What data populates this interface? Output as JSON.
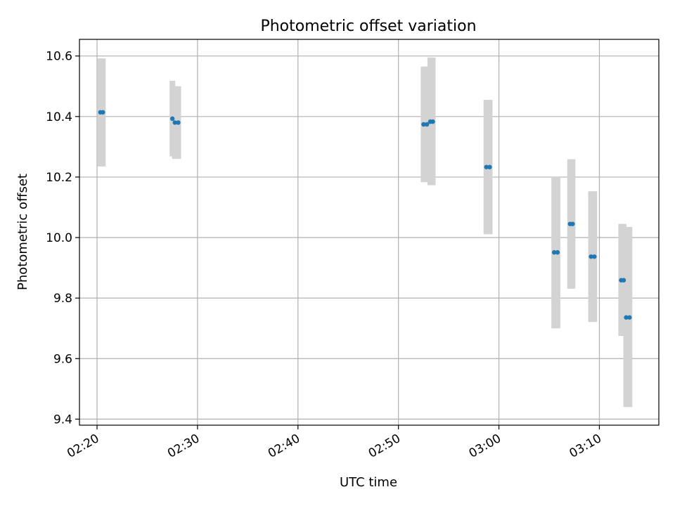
{
  "chart_data": {
    "type": "scatter",
    "title": "Photometric offset variation",
    "xlabel": "UTC time",
    "ylabel": "Photometric offset",
    "xlim": [
      "02:18:15",
      "03:15:55"
    ],
    "ylim": [
      9.38,
      10.655
    ],
    "grid": true,
    "x_ticks": [
      "02:20",
      "02:30",
      "02:40",
      "02:50",
      "03:00",
      "03:10"
    ],
    "y_ticks": [
      "9.4",
      "9.6",
      "9.8",
      "10.0",
      "10.2",
      "10.4",
      "10.6"
    ],
    "colors": {
      "marker": "#1f77b4",
      "errorbar": "#d3d3d3",
      "grid": "#b0b0b0"
    },
    "series": [
      {
        "points": [
          {
            "x": "02:20:20",
            "y": 10.414,
            "yerr_low": 10.235,
            "yerr_high": 10.592
          },
          {
            "x": "02:20:35",
            "y": 10.414,
            "yerr_low": 10.235,
            "yerr_high": 10.592
          },
          {
            "x": "02:27:30",
            "y": 10.393,
            "yerr_low": 10.268,
            "yerr_high": 10.518
          },
          {
            "x": "02:27:45",
            "y": 10.38,
            "yerr_low": 10.26,
            "yerr_high": 10.5
          },
          {
            "x": "02:28:05",
            "y": 10.38,
            "yerr_low": 10.26,
            "yerr_high": 10.5
          },
          {
            "x": "02:52:30",
            "y": 10.374,
            "yerr_low": 10.183,
            "yerr_high": 10.565
          },
          {
            "x": "02:52:50",
            "y": 10.374,
            "yerr_low": 10.183,
            "yerr_high": 10.565
          },
          {
            "x": "02:53:10",
            "y": 10.383,
            "yerr_low": 10.173,
            "yerr_high": 10.595
          },
          {
            "x": "02:53:25",
            "y": 10.383,
            "yerr_low": 10.173,
            "yerr_high": 10.595
          },
          {
            "x": "02:58:45",
            "y": 10.233,
            "yerr_low": 10.011,
            "yerr_high": 10.455
          },
          {
            "x": "02:59:05",
            "y": 10.233,
            "yerr_low": 10.011,
            "yerr_high": 10.455
          },
          {
            "x": "03:05:30",
            "y": 9.951,
            "yerr_low": 9.7,
            "yerr_high": 10.202
          },
          {
            "x": "03:05:50",
            "y": 9.951,
            "yerr_low": 9.7,
            "yerr_high": 10.202
          },
          {
            "x": "03:07:05",
            "y": 10.045,
            "yerr_low": 9.831,
            "yerr_high": 10.259
          },
          {
            "x": "03:07:20",
            "y": 10.045,
            "yerr_low": 9.831,
            "yerr_high": 10.259
          },
          {
            "x": "03:09:10",
            "y": 9.937,
            "yerr_low": 9.721,
            "yerr_high": 10.153
          },
          {
            "x": "03:09:30",
            "y": 9.937,
            "yerr_low": 9.721,
            "yerr_high": 10.153
          },
          {
            "x": "03:12:10",
            "y": 9.859,
            "yerr_low": 9.675,
            "yerr_high": 10.045
          },
          {
            "x": "03:12:25",
            "y": 9.859,
            "yerr_low": 9.675,
            "yerr_high": 10.045
          },
          {
            "x": "03:12:40",
            "y": 9.736,
            "yerr_low": 9.44,
            "yerr_high": 10.035
          },
          {
            "x": "03:13:00",
            "y": 9.736,
            "yerr_low": 9.44,
            "yerr_high": 10.035
          }
        ]
      }
    ]
  }
}
